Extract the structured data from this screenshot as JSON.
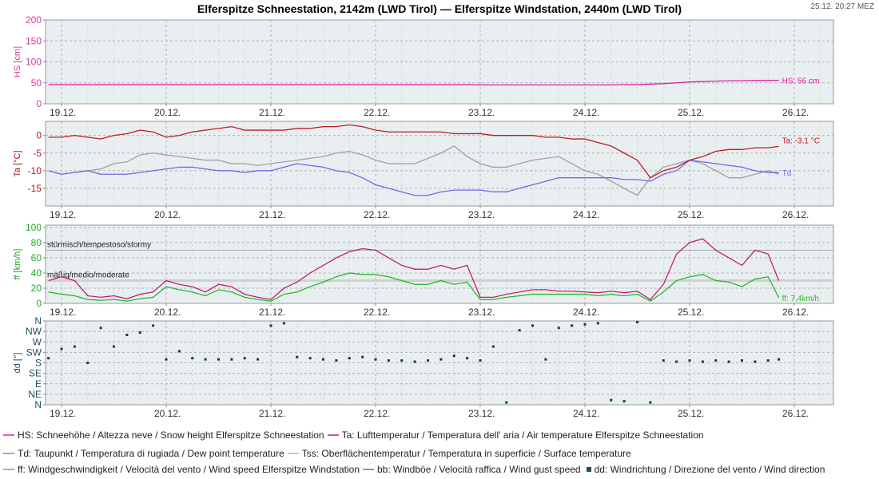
{
  "header": {
    "title": "Elferspitze Schneestation, 2142m (LWD Tirol) — Elferspitze Windstation, 2440m (LWD Tirol)",
    "timestamp": "25.12. 20:27 MEZ"
  },
  "legend": [
    [
      {
        "label": "HS: Schneehöhe / Altezza neve / Snow height  Elferspitze Schneestation",
        "color": "#e060b0",
        "marker": "line"
      },
      {
        "label": "Ta: Lufttemperatur / Temperatura dell' aria / Air temperature  Elferspitze Schneestation",
        "color": "#d06060",
        "marker": "line"
      }
    ],
    [
      {
        "label": "Td: Taupunkt / Temperatura di rugiada / Dew point temperature",
        "color": "#a0a0e8",
        "marker": "line"
      },
      {
        "label": "Tss: Oberflächentemperatur / Temperatura in superficie / Surface temperature",
        "color": "#c8c8c8",
        "marker": "line"
      }
    ],
    [
      {
        "label": "ff: Windgeschwindigkeit / Velocità del vento / Wind speed  Elferspitze Windstation",
        "color": "#80d080",
        "marker": "line"
      },
      {
        "label": "bb: Windböe / Velocità raffica / Wind gust speed",
        "color": "#c878a8",
        "marker": "line"
      },
      {
        "label": "dd: Windrichtung / Direzione del vento / Wind direction",
        "color": "#1e4d5e",
        "marker": "square"
      }
    ]
  ],
  "chart_data": {
    "type": "line",
    "x_tick_labels": [
      "19.12.",
      "20.12.",
      "21.12.",
      "22.12.",
      "23.12.",
      "24.12.",
      "25.12.",
      "26.12."
    ],
    "grid": true,
    "times": [
      "18.12. 21:00",
      "19.12. 00:00",
      "19.12. 03:00",
      "19.12. 06:00",
      "19.12. 09:00",
      "19.12. 12:00",
      "19.12. 15:00",
      "19.12. 18:00",
      "19.12. 21:00",
      "20.12. 00:00",
      "20.12. 03:00",
      "20.12. 06:00",
      "20.12. 09:00",
      "20.12. 12:00",
      "20.12. 15:00",
      "20.12. 18:00",
      "20.12. 21:00",
      "21.12. 00:00",
      "21.12. 03:00",
      "21.12. 06:00",
      "21.12. 09:00",
      "21.12. 12:00",
      "21.12. 15:00",
      "21.12. 18:00",
      "21.12. 21:00",
      "22.12. 00:00",
      "22.12. 03:00",
      "22.12. 06:00",
      "22.12. 09:00",
      "22.12. 12:00",
      "22.12. 15:00",
      "22.12. 18:00",
      "22.12. 21:00",
      "23.12. 00:00",
      "23.12. 03:00",
      "23.12. 06:00",
      "23.12. 09:00",
      "23.12. 12:00",
      "23.12. 15:00",
      "23.12. 18:00",
      "23.12. 21:00",
      "24.12. 00:00",
      "24.12. 03:00",
      "24.12. 06:00",
      "24.12. 09:00",
      "24.12. 12:00",
      "24.12. 15:00",
      "24.12. 18:00",
      "24.12. 21:00",
      "25.12. 00:00",
      "25.12. 03:00",
      "25.12. 06:00",
      "25.12. 09:00",
      "25.12. 12:00",
      "25.12. 15:00",
      "25.12. 18:00",
      "25.12. 20:27"
    ],
    "panels": [
      {
        "id": "hs",
        "ylabel": "HS [cm]",
        "ylim": [
          0,
          200
        ],
        "yticks": [
          0,
          50,
          100,
          150,
          200
        ],
        "axis_color": "#d63c9a",
        "series": [
          {
            "key": "HS",
            "color": "#e0209a",
            "end_label": "HS: 56 cm",
            "values": [
              46,
              46,
              46,
              46,
              46,
              46,
              46,
              46,
              46,
              46,
              46,
              46,
              46,
              46,
              46,
              46,
              46,
              46,
              46,
              46,
              46,
              46,
              46,
              46,
              46,
              46,
              46,
              46,
              46,
              46,
              46,
              46,
              46,
              45,
              45,
              45,
              45,
              45,
              45,
              45,
              45,
              45,
              45,
              45,
              46,
              46,
              47,
              48,
              50,
              52,
              53,
              54,
              55,
              55,
              56,
              56,
              56
            ]
          }
        ]
      },
      {
        "id": "ta",
        "ylabel": "Ta [°C]",
        "ylim": [
          -20,
          4
        ],
        "yticks": [
          -15,
          -10,
          -5,
          0
        ],
        "axis_color": "#b01818",
        "series": [
          {
            "key": "Tss",
            "color": "#a0a0a0",
            "values": [
              -10,
              -11,
              -10.5,
              -10,
              -9.5,
              -8,
              -7.5,
              -5.5,
              -5,
              -5.5,
              -6,
              -6.5,
              -7,
              -7,
              -8,
              -8,
              -8.5,
              -8,
              -7.5,
              -7,
              -6.5,
              -6,
              -5,
              -4.5,
              -5.5,
              -7,
              -8,
              -8,
              -8,
              -6.5,
              -5,
              -3,
              -6,
              -8,
              -9,
              -9,
              -8,
              -7,
              -6.5,
              -6,
              -8,
              -10,
              -11,
              -13,
              -15,
              -17,
              -12,
              -9,
              -8,
              -7,
              -8,
              -10,
              -12,
              -12,
              -11,
              -10,
              -11
            ]
          },
          {
            "key": "Td",
            "color": "#6a6ae8",
            "end_label": "Td",
            "values": [
              -10,
              -11,
              -10.5,
              -10,
              -11,
              -11,
              -11,
              -10.5,
              -10,
              -9.5,
              -9,
              -9,
              -9.5,
              -10,
              -10,
              -10.5,
              -10,
              -10,
              -9,
              -8,
              -8.5,
              -9,
              -10,
              -10.5,
              -12,
              -14,
              -15,
              -16,
              -17,
              -17,
              -16,
              -15.5,
              -15.5,
              -15.5,
              -16,
              -16,
              -15,
              -14,
              -13,
              -12,
              -12,
              -12,
              -12,
              -12,
              -12.5,
              -12.5,
              -13,
              -11,
              -10,
              -7,
              -7.5,
              -8,
              -8.5,
              -9,
              -10,
              -10.5,
              -10.5
            ]
          },
          {
            "key": "Ta",
            "color": "#c01c1c",
            "end_label": "Ta: -3,1 °C",
            "values": [
              -0.5,
              -0.5,
              0,
              -0.5,
              -1,
              0,
              0.5,
              1.5,
              1,
              -0.5,
              0,
              1,
              1.5,
              2,
              2.5,
              1.5,
              1.5,
              1.5,
              1.5,
              2,
              2,
              2.5,
              2.5,
              3,
              2.5,
              1.5,
              1,
              1,
              1,
              1,
              1,
              0.5,
              0.5,
              0.5,
              0,
              0,
              0,
              0,
              -0.5,
              -0.5,
              -1,
              -1,
              -2,
              -3,
              -5,
              -7,
              -12,
              -10,
              -9,
              -7,
              -6,
              -4.5,
              -4,
              -4,
              -3.5,
              -3.5,
              -3.1
            ]
          }
        ]
      },
      {
        "id": "ff",
        "ylabel": "ff [km/h]",
        "ylim": [
          0,
          103
        ],
        "yticks": [
          0,
          20,
          40,
          60,
          80,
          100
        ],
        "axis_color": "#22aa22",
        "thresholds": [
          {
            "value": 70,
            "label": "stürmisch/tempestoso/stormy"
          },
          {
            "value": 30,
            "label": "mäßig/medio/moderate"
          }
        ],
        "series": [
          {
            "key": "bb",
            "color": "#c0206e",
            "values": [
              30,
              35,
              30,
              10,
              8,
              10,
              6,
              12,
              15,
              30,
              25,
              22,
              15,
              25,
              22,
              12,
              8,
              5,
              20,
              28,
              40,
              50,
              60,
              68,
              72,
              70,
              60,
              50,
              45,
              45,
              50,
              45,
              50,
              8,
              8,
              12,
              15,
              18,
              18,
              16,
              16,
              15,
              14,
              16,
              14,
              16,
              5,
              25,
              65,
              80,
              85,
              70,
              60,
              50,
              70,
              65,
              30
            ]
          },
          {
            "key": "ff",
            "color": "#22bb22",
            "end_label": "ff: 7,4km/h",
            "values": [
              15,
              12,
              10,
              5,
              4,
              5,
              3,
              6,
              8,
              22,
              18,
              15,
              10,
              18,
              15,
              8,
              5,
              3,
              12,
              15,
              22,
              28,
              35,
              40,
              38,
              38,
              35,
              30,
              25,
              25,
              30,
              25,
              28,
              5,
              5,
              8,
              10,
              12,
              12,
              12,
              12,
              12,
              10,
              12,
              10,
              12,
              3,
              15,
              30,
              35,
              38,
              30,
              28,
              22,
              32,
              35,
              7.4
            ]
          }
        ]
      },
      {
        "id": "dd",
        "type": "scatter",
        "ylabel": "dd [°]",
        "ylim": [
          0,
          360
        ],
        "yticks": [
          360,
          315,
          270,
          225,
          180,
          135,
          90,
          45,
          0
        ],
        "ytick_labels": [
          "N",
          "NW",
          "W",
          "SW",
          "S",
          "SE",
          "E",
          "NE",
          "N"
        ],
        "axis_color": "#1e4d5e",
        "series": [
          {
            "key": "dd",
            "color": "#0f3c4f",
            "values": [
              200,
              240,
              250,
              180,
              330,
              250,
              300,
              310,
              340,
              195,
              230,
              200,
              195,
              195,
              195,
              200,
              195,
              340,
              350,
              205,
              200,
              195,
              190,
              200,
              205,
              195,
              190,
              190,
              185,
              190,
              195,
              210,
              200,
              190,
              250,
              10,
              320,
              340,
              195,
              330,
              340,
              345,
              350,
              20,
              15,
              355,
              10,
              190,
              185,
              190,
              185,
              190,
              185,
              190,
              185,
              190,
              195
            ]
          }
        ]
      }
    ]
  }
}
